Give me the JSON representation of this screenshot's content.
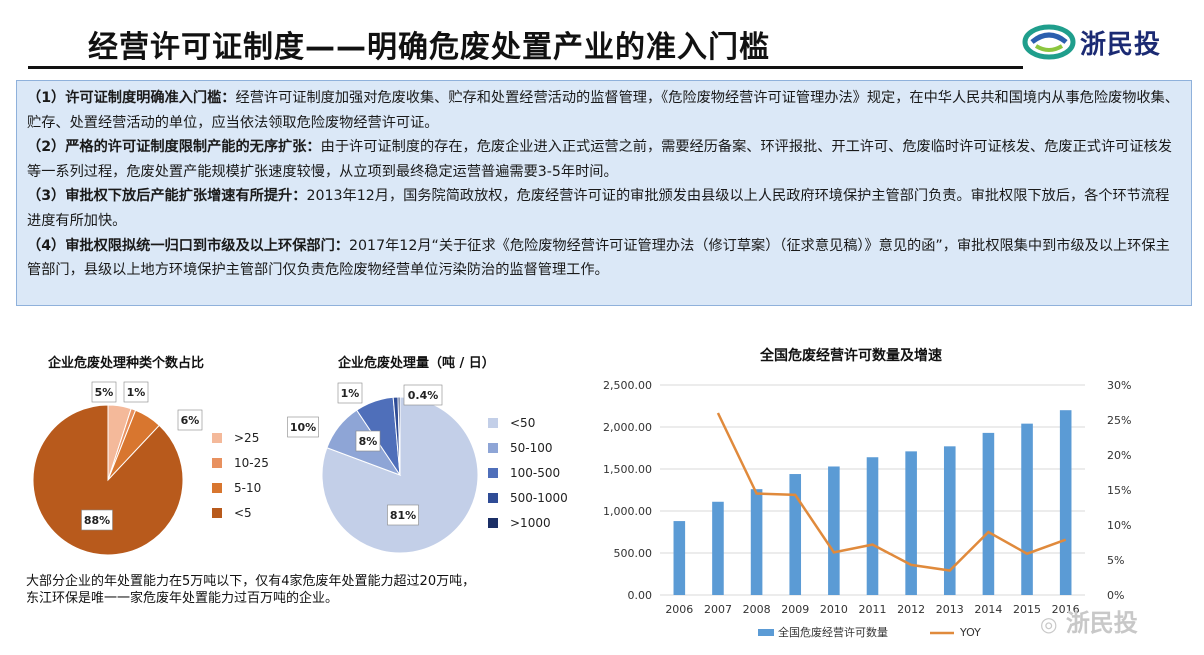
{
  "header": {
    "title": "经营许可证制度——明确危废处置产业的准入门槛",
    "logo_text": "浙民投"
  },
  "points": [
    {
      "heading": "（1）许可证制度明确准入门槛：",
      "body": "经营许可证制度加强对危废收集、贮存和处置经营活动的监督管理，《危险废物经营许可证管理办法》规定，在中华人民共和国境内从事危险废物收集、贮存、处置经营活动的单位，应当依法领取危险废物经营许可证。"
    },
    {
      "heading": "（2）严格的许可证制度限制产能的无序扩张：",
      "body": "由于许可证制度的存在，危废企业进入正式运营之前，需要经历备案、环评报批、开工许可、危废临时许可证核发、危废正式许可证核发等一系列过程，危废处置产能规模扩张速度较慢，从立项到最终稳定运营普遍需要3-5年时间。"
    },
    {
      "heading": "（3）审批权下放后产能扩张增速有所提升：",
      "body": "2013年12月，国务院简政放权，危废经营许可证的审批颁发由县级以上人民政府环境保护主管部门负责。审批权限下放后，各个环节流程进度有所加快。"
    },
    {
      "heading": "（4）审批权限拟统一归口到市级及以上环保部门：",
      "body": "2017年12月“关于征求《危险废物经营许可证管理办法（修订草案）（征求意见稿）》意见的函”，审批权限集中到市级及以上环保主管部门，县级以上地方环境保护主管部门仅负责危险废物经营单位污染防治的监督管理工作。"
    }
  ],
  "note": {
    "line1": "大部分企业的年处置能力在5万吨以下，仅有4家危废年处置能力超过20万吨，",
    "line2": "东江环保是唯一一家危废年处置能力过百万吨的企业。"
  },
  "watermark": "浙民投",
  "chart_data": [
    {
      "type": "pie",
      "title": "企业危废处理种类个数占比",
      "categories": [
        ">25",
        "10-25",
        "5-10",
        "<5"
      ],
      "values": [
        5,
        1,
        6,
        88
      ],
      "labels": [
        "5%",
        "1%",
        "6%",
        "88%"
      ],
      "colors": [
        "#f4b99a",
        "#e8915f",
        "#d8762f",
        "#b85a1c"
      ],
      "legend": "right"
    },
    {
      "type": "pie",
      "title": "企业危废处理量（吨 / 日）",
      "categories": [
        "<50",
        "50-100",
        "100-500",
        "500-1000",
        ">1000"
      ],
      "values": [
        81,
        10,
        8,
        1,
        0.4
      ],
      "labels": [
        "81%",
        "10%",
        "8%",
        "1%",
        "0.4%"
      ],
      "colors": [
        "#c3cfe8",
        "#8ea5d6",
        "#4f6fba",
        "#2f4c96",
        "#1b2f66"
      ],
      "legend": "right"
    },
    {
      "type": "bar",
      "title": "全国危废经营许可数量及增速",
      "categories": [
        "2006",
        "2007",
        "2008",
        "2009",
        "2010",
        "2011",
        "2012",
        "2013",
        "2014",
        "2015",
        "2016"
      ],
      "series": [
        {
          "name": "全国危废经营许可数量",
          "type": "bar",
          "axis": "left",
          "color": "#5b9bd5",
          "values": [
            880,
            1110,
            1260,
            1440,
            1530,
            1640,
            1710,
            1770,
            1930,
            2040,
            2200
          ]
        },
        {
          "name": "YOY",
          "type": "line",
          "axis": "right",
          "color": "#e08a3c",
          "values": [
            null,
            26,
            14.5,
            14.3,
            6.1,
            7.2,
            4.3,
            3.5,
            9,
            5.9,
            7.9
          ]
        }
      ],
      "ylim": [
        0,
        2500
      ],
      "yticks": [
        "0.00",
        "500.00",
        "1,000.00",
        "1,500.00",
        "2,000.00",
        "2,500.00"
      ],
      "y2lim": [
        0,
        30
      ],
      "y2ticks": [
        "0%",
        "5%",
        "10%",
        "15%",
        "20%",
        "25%",
        "30%"
      ],
      "legend": "bottom"
    }
  ]
}
